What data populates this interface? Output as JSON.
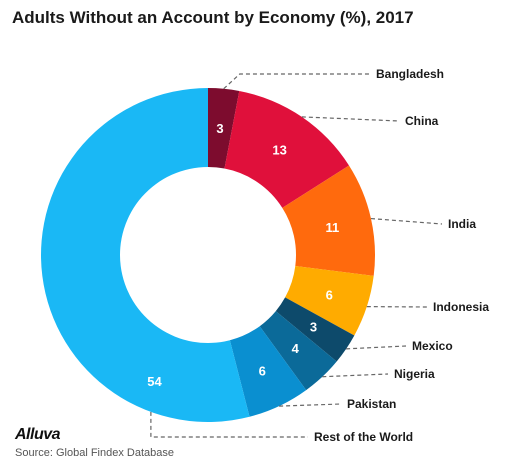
{
  "chart_data": {
    "type": "pie",
    "donut": true,
    "title": "Adults Without an Account by Economy (%), 2017",
    "categories": [
      "Bangladesh",
      "China",
      "India",
      "Indonesia",
      "Mexico",
      "Nigeria",
      "Pakistan",
      "Rest of the World"
    ],
    "values": [
      3,
      13,
      11,
      6,
      3,
      4,
      6,
      54
    ],
    "colors": [
      "#7d0c2e",
      "#e0103b",
      "#ff6a0d",
      "#ffab00",
      "#0d4a6b",
      "#0b6a99",
      "#0a8fd0",
      "#1ab8f5"
    ],
    "legend": "none"
  },
  "footer": {
    "logo": "Alluva",
    "source": "Source: Global Findex Database"
  }
}
